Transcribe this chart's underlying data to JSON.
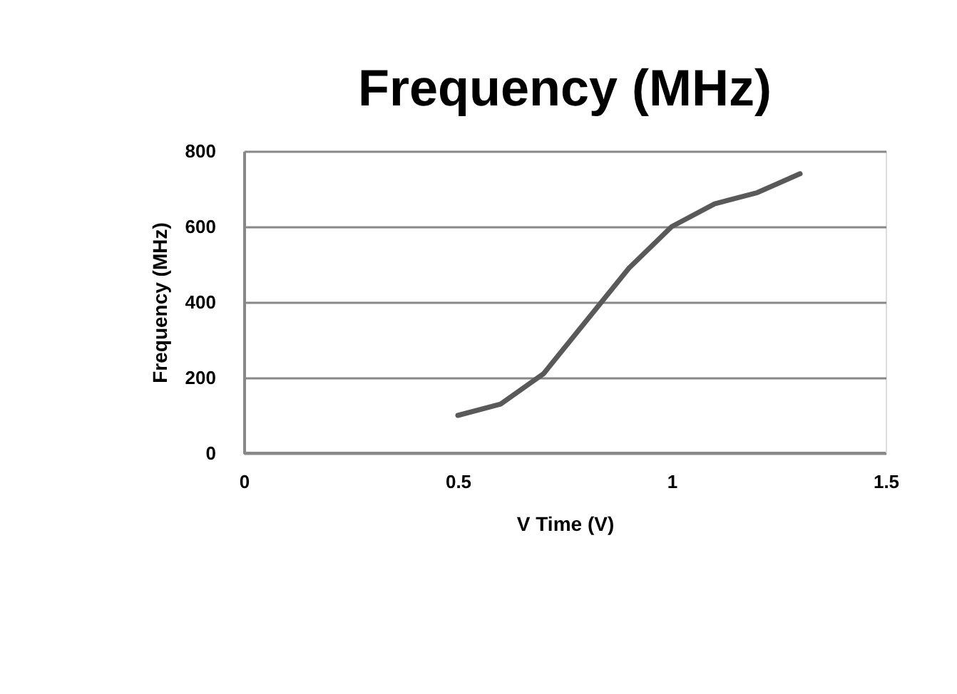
{
  "chart_data": {
    "type": "line",
    "title": "Frequency (MHz)",
    "xlabel": "V Time (V)",
    "ylabel": "Frequency (MHz)",
    "x": [
      0.5,
      0.6,
      0.7,
      0.8,
      0.9,
      1.0,
      1.1,
      1.2,
      1.3
    ],
    "series": [
      {
        "color": "#595959",
        "values": [
          100,
          130,
          210,
          350,
          490,
          600,
          660,
          690,
          740
        ]
      }
    ],
    "xlim": [
      0,
      1.5
    ],
    "xticks": [
      0,
      0.5,
      1,
      1.5
    ],
    "ylim": [
      0,
      800
    ],
    "yticks": [
      0,
      200,
      400,
      600,
      800
    ],
    "grid": "y",
    "marker": "none",
    "line_style": "solid"
  }
}
